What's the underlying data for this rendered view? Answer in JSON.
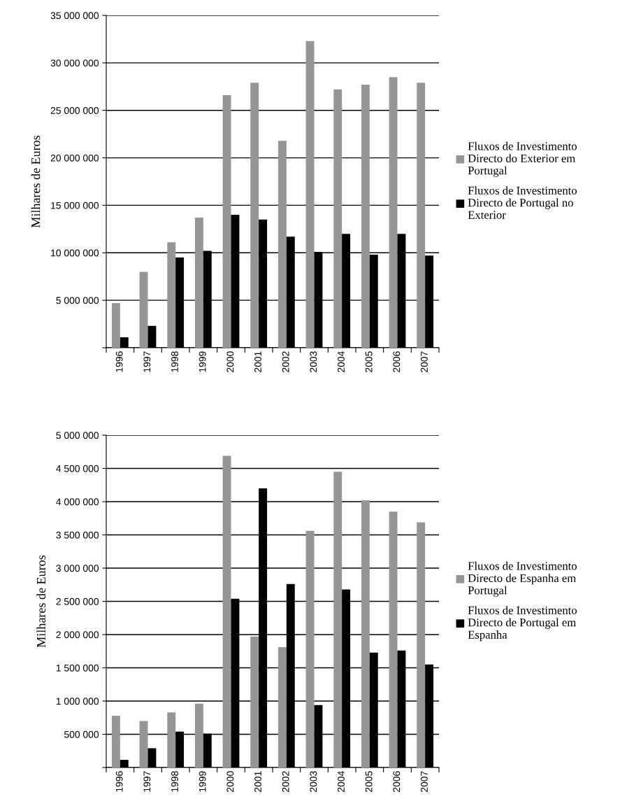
{
  "chart_data": [
    {
      "type": "bar",
      "ylabel": "Milhares de Euros",
      "categories": [
        "1996",
        "1997",
        "1998",
        "1999",
        "2000",
        "2001",
        "2002",
        "2003",
        "2004",
        "2005",
        "2006",
        "2007"
      ],
      "series": [
        {
          "name": "Fluxos de Investimento Directo do Exterior em Portugal",
          "color": "#969696",
          "values": [
            4700000,
            8000000,
            11100000,
            13700000,
            26600000,
            27900000,
            21800000,
            32300000,
            27200000,
            27700000,
            28500000,
            27900000
          ]
        },
        {
          "name": "Fluxos de Investimento Directo de Portugal no Exterior",
          "color": "#000000",
          "values": [
            1100000,
            2300000,
            9500000,
            10200000,
            14000000,
            13500000,
            11700000,
            10100000,
            12000000,
            9800000,
            12000000,
            9700000
          ]
        }
      ],
      "ylim": [
        0,
        35000000
      ],
      "yticks": [
        {
          "value": 0,
          "label": null
        },
        {
          "value": 5000000,
          "label": "5 000 000"
        },
        {
          "value": 10000000,
          "label": "10 000 000"
        },
        {
          "value": 15000000,
          "label": "15 000 000"
        },
        {
          "value": 20000000,
          "label": "20 000 000"
        },
        {
          "value": 25000000,
          "label": "25 000 000"
        },
        {
          "value": 30000000,
          "label": "30 000 000"
        },
        {
          "value": 35000000,
          "label": "35 000 000"
        }
      ],
      "grid": "y",
      "legend": "right"
    },
    {
      "type": "bar",
      "ylabel": "Milhares de Euros",
      "categories": [
        "1996",
        "1997",
        "1998",
        "1999",
        "2000",
        "2001",
        "2002",
        "2003",
        "2004",
        "2005",
        "2006",
        "2007"
      ],
      "series": [
        {
          "name": "Fluxos de Investimento Directo de Espanha em Portugal",
          "color": "#969696",
          "values": [
            780000,
            700000,
            830000,
            960000,
            4690000,
            1970000,
            1810000,
            3560000,
            4450000,
            4020000,
            3850000,
            3690000
          ]
        },
        {
          "name": "Fluxos de Investimento Directo de Portugal em Espanha",
          "color": "#000000",
          "values": [
            115000,
            290000,
            540000,
            510000,
            2540000,
            4200000,
            2760000,
            940000,
            2680000,
            1730000,
            1760000,
            1550000
          ]
        }
      ],
      "ylim": [
        0,
        5000000
      ],
      "yticks": [
        {
          "value": 0,
          "label": null
        },
        {
          "value": 500000,
          "label": "500 000"
        },
        {
          "value": 1000000,
          "label": "1 000 000"
        },
        {
          "value": 1500000,
          "label": "1 500 000"
        },
        {
          "value": 2000000,
          "label": "2 000 000"
        },
        {
          "value": 2500000,
          "label": "2 500 000"
        },
        {
          "value": 3000000,
          "label": "3 000 000"
        },
        {
          "value": 3500000,
          "label": "3 500 000"
        },
        {
          "value": 4000000,
          "label": "4 000 000"
        },
        {
          "value": 4500000,
          "label": "4 500 000"
        },
        {
          "value": 5000000,
          "label": "5 000 000"
        }
      ],
      "grid": "y",
      "legend": "right"
    }
  ]
}
